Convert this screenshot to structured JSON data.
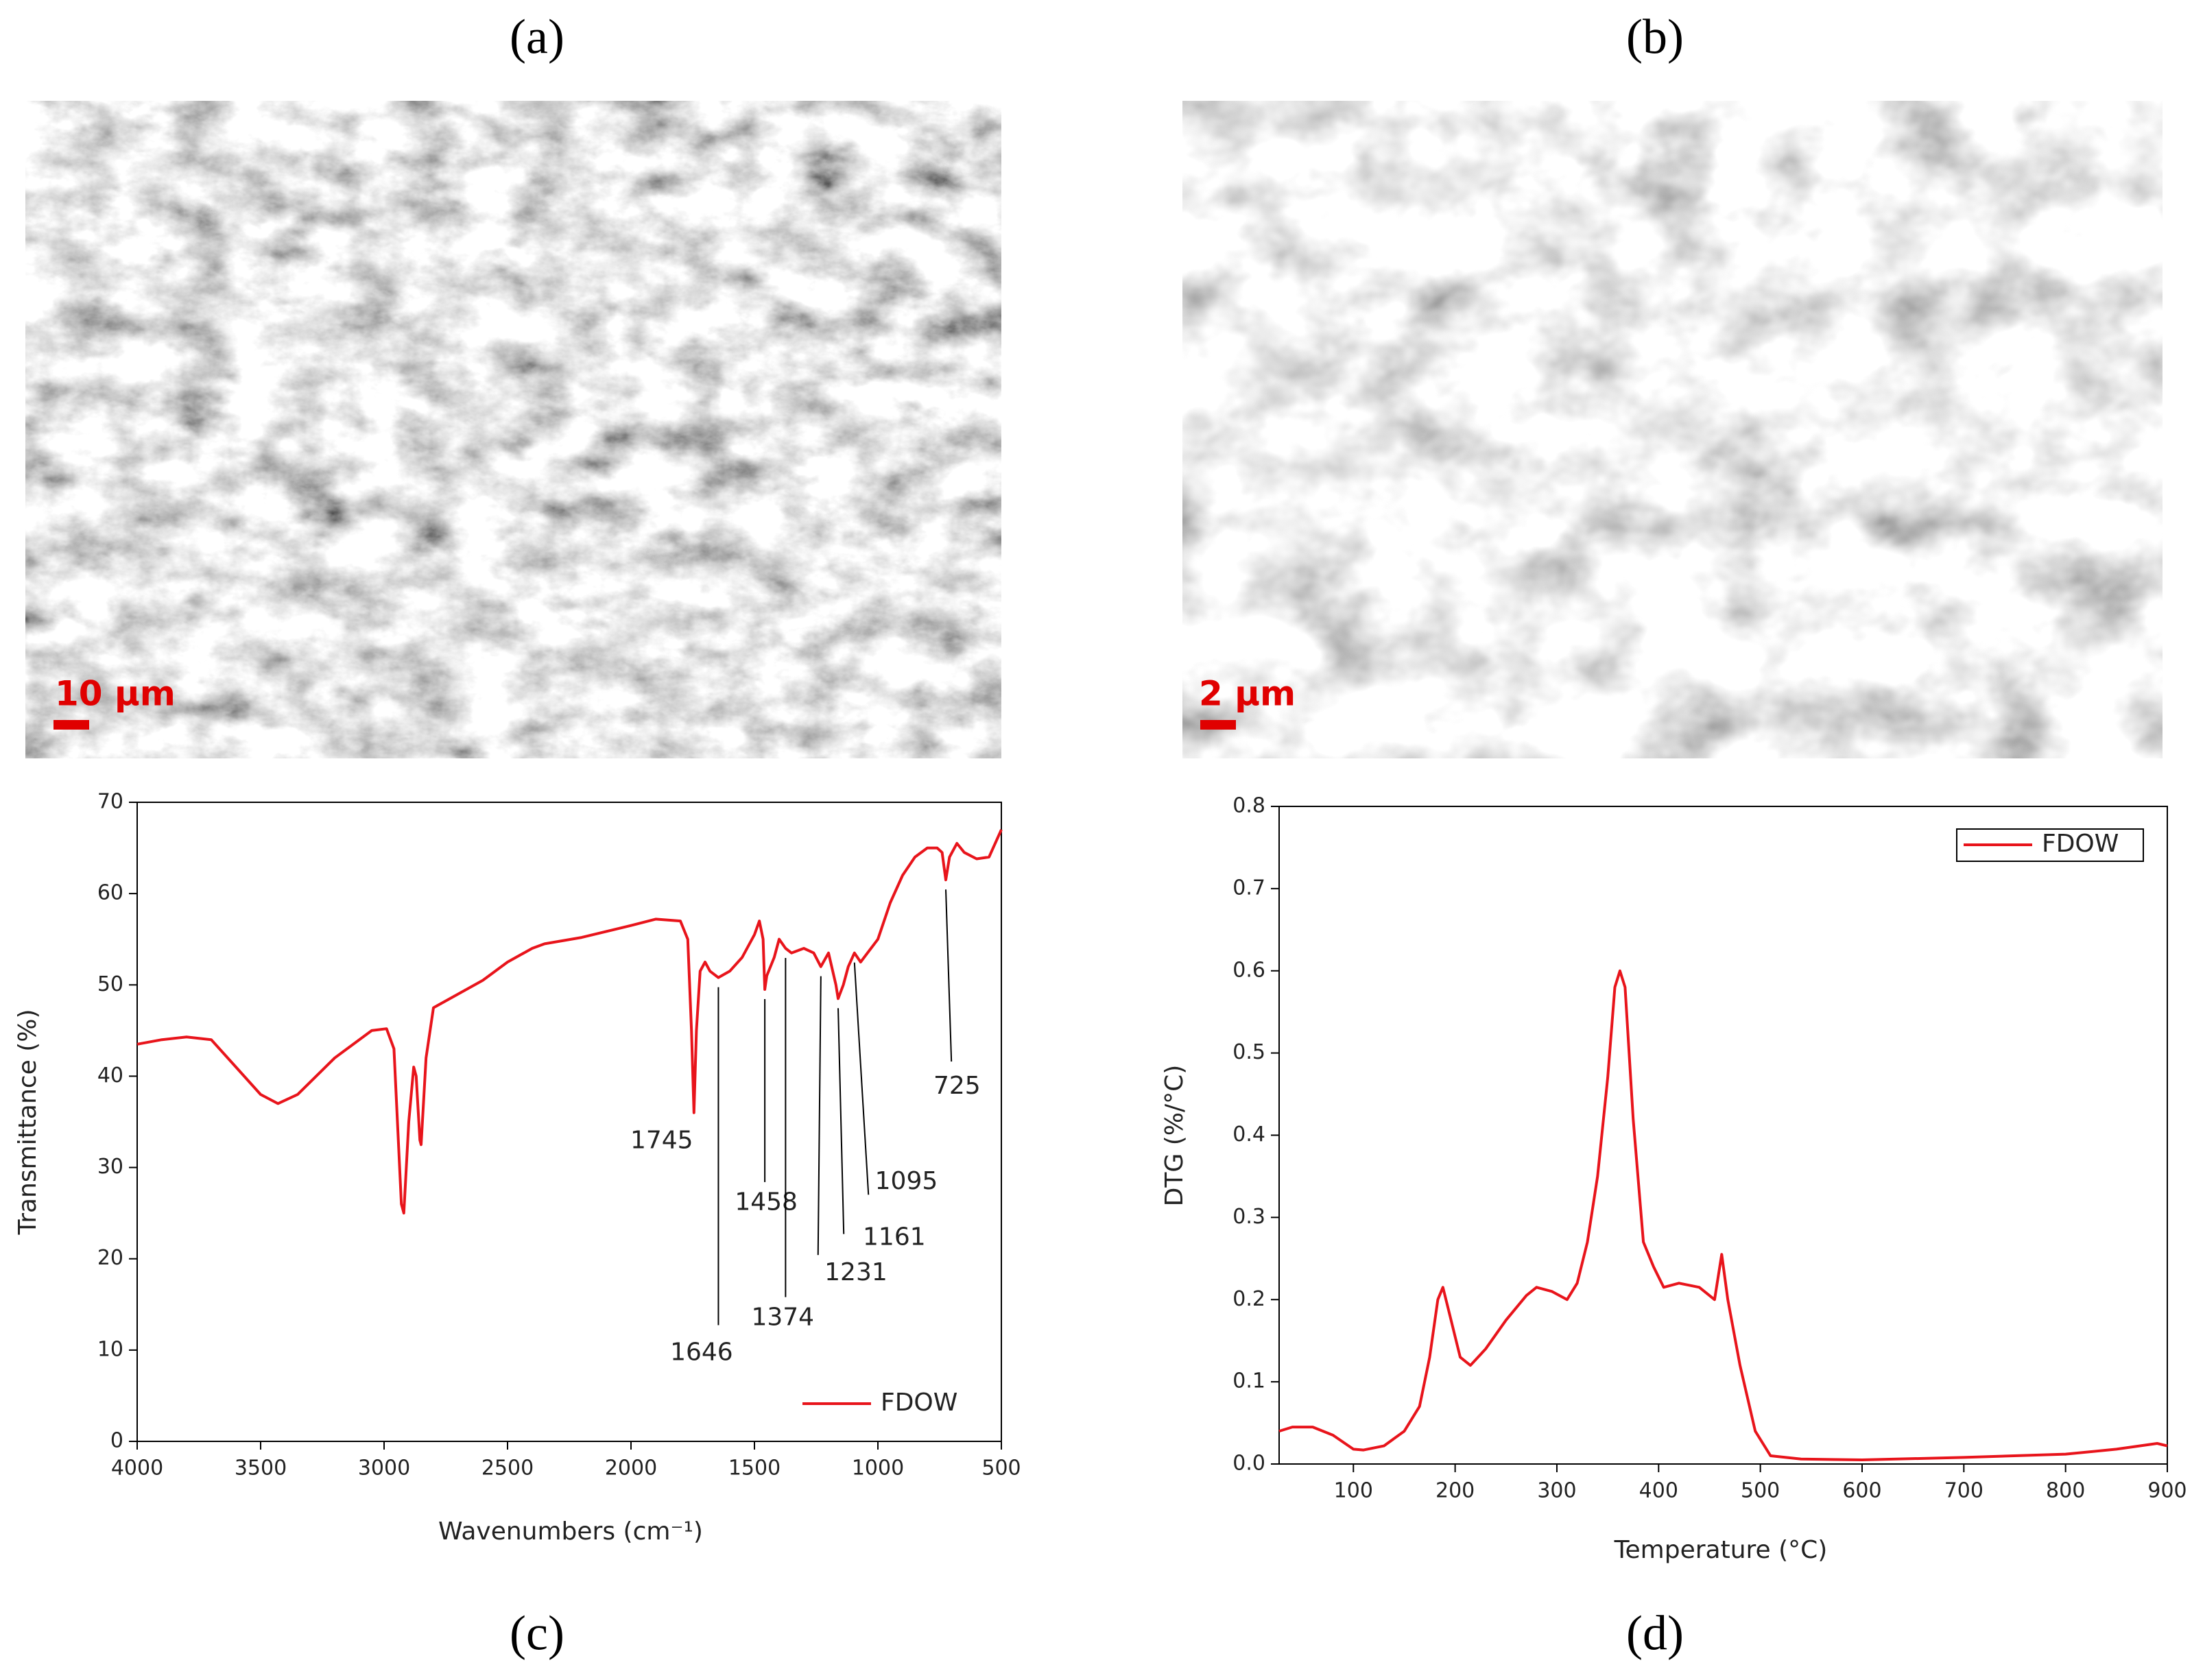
{
  "panels": [
    {
      "label": "(a)",
      "scale_bar": "10 μm"
    },
    {
      "label": "(b)",
      "scale_bar": "2 μm"
    },
    {
      "label": "(c)"
    },
    {
      "label": "(d)"
    }
  ],
  "chart_data": [
    {
      "type": "line",
      "xlabel": "Wavenumbers (cm⁻¹)",
      "ylabel": "Transmittance (%)",
      "xlim": [
        4000,
        500
      ],
      "ylim": [
        0,
        70
      ],
      "xticks": [
        4000,
        3500,
        3000,
        2500,
        2000,
        1500,
        1000,
        500
      ],
      "yticks": [
        0,
        10,
        20,
        30,
        40,
        50,
        60,
        70
      ],
      "legend": "lower right",
      "peaks": [
        1745,
        1458,
        1374,
        1646,
        1231,
        1161,
        1095,
        725
      ],
      "x": [
        4000,
        3900,
        3800,
        3700,
        3600,
        3500,
        3430,
        3350,
        3200,
        3050,
        2990,
        2960,
        2930,
        2920,
        2900,
        2880,
        2870,
        2855,
        2850,
        2830,
        2800,
        2700,
        2600,
        2500,
        2400,
        2350,
        2200,
        2000,
        1900,
        1800,
        1770,
        1755,
        1745,
        1735,
        1720,
        1700,
        1680,
        1646,
        1600,
        1550,
        1500,
        1480,
        1465,
        1458,
        1450,
        1420,
        1400,
        1374,
        1350,
        1300,
        1260,
        1231,
        1200,
        1170,
        1161,
        1140,
        1120,
        1095,
        1070,
        1000,
        950,
        900,
        850,
        800,
        760,
        740,
        725,
        710,
        680,
        650,
        600,
        550,
        500
      ],
      "series": [
        {
          "name": "FDOW",
          "color": "#e8141b",
          "values": [
            43.5,
            44,
            44.3,
            44,
            41,
            38,
            37,
            38,
            42,
            45,
            45.2,
            43,
            26,
            25,
            35,
            41,
            40,
            33,
            32.5,
            42,
            47.5,
            49,
            50.5,
            52.5,
            54,
            54.5,
            55.2,
            56.5,
            57.2,
            57,
            55,
            45,
            36,
            45,
            51.5,
            52.5,
            51.5,
            50.8,
            51.5,
            53,
            55.5,
            57,
            55,
            49.5,
            51,
            53,
            55,
            54,
            53.5,
            54,
            53.5,
            52,
            53.5,
            50,
            48.5,
            50,
            52,
            53.5,
            52.5,
            55,
            59,
            62,
            64,
            65,
            65,
            64.5,
            61.5,
            64,
            65.5,
            64.5,
            63.8,
            64,
            67
          ]
        }
      ]
    },
    {
      "type": "line",
      "xlabel": "Temperature (°C)",
      "ylabel": "DTG (%/°C)",
      "xlim": [
        27,
        900
      ],
      "ylim": [
        0,
        0.8
      ],
      "xticks": [
        100,
        200,
        300,
        400,
        500,
        600,
        700,
        800,
        900
      ],
      "yticks": [
        {
          "value": 0,
          "label": "0.0"
        },
        0.1,
        0.2,
        0.3,
        0.4,
        0.5,
        0.6,
        0.7,
        0.8
      ],
      "legend": "upper right",
      "x": [
        27,
        40,
        60,
        80,
        100,
        110,
        130,
        150,
        165,
        175,
        183,
        188,
        195,
        205,
        215,
        230,
        250,
        270,
        280,
        295,
        310,
        320,
        330,
        340,
        350,
        357,
        362,
        367,
        375,
        385,
        395,
        405,
        420,
        440,
        455,
        462,
        468,
        480,
        495,
        510,
        540,
        600,
        700,
        800,
        850,
        890,
        900
      ],
      "series": [
        {
          "name": "FDOW",
          "color": "#e8141b",
          "values": [
            0.04,
            0.045,
            0.045,
            0.035,
            0.018,
            0.017,
            0.022,
            0.04,
            0.07,
            0.13,
            0.2,
            0.215,
            0.18,
            0.13,
            0.12,
            0.14,
            0.175,
            0.205,
            0.215,
            0.21,
            0.2,
            0.22,
            0.27,
            0.35,
            0.47,
            0.58,
            0.6,
            0.58,
            0.42,
            0.27,
            0.24,
            0.215,
            0.22,
            0.215,
            0.2,
            0.255,
            0.2,
            0.12,
            0.04,
            0.01,
            0.006,
            0.005,
            0.008,
            0.012,
            0.018,
            0.025,
            0.022
          ]
        }
      ]
    }
  ]
}
